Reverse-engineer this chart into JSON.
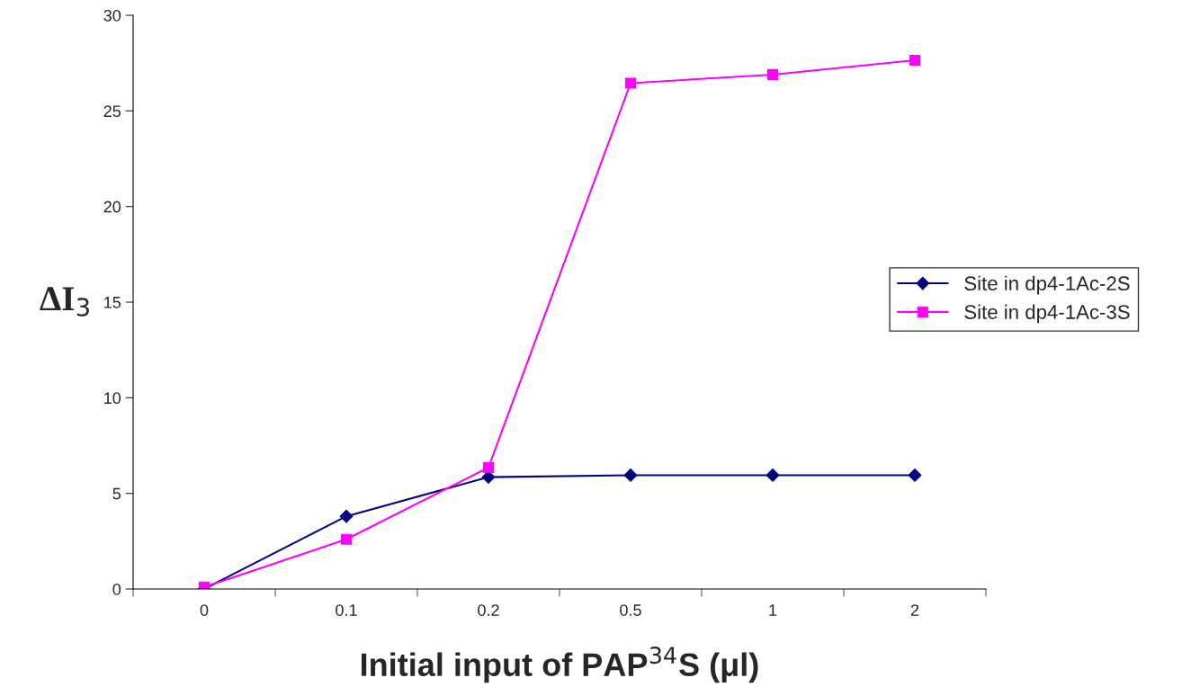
{
  "chart_data": {
    "type": "line",
    "xlabel": "Initial input of PAP$^{34}$S (μl)",
    "ylabel": "ΔI$_{3}$",
    "categories": [
      "0",
      "0.1",
      "0.2",
      "0.5",
      "1",
      "2"
    ],
    "series": [
      {
        "name": "Site in dp4-1Ac-2S",
        "color": "#000080",
        "marker": "diamond",
        "values": [
          0,
          3.8,
          5.85,
          5.95,
          5.95,
          5.95
        ]
      },
      {
        "name": "Site in dp4-1Ac-3S",
        "color": "#ff00ff",
        "marker": "square",
        "values": [
          0.1,
          2.6,
          6.35,
          26.45,
          26.9,
          27.65
        ]
      }
    ],
    "ylim": [
      0,
      30
    ],
    "yticks": [
      0,
      5,
      10,
      15,
      20,
      25,
      30
    ],
    "grid": false,
    "legend": "right",
    "line_style": "solid"
  }
}
